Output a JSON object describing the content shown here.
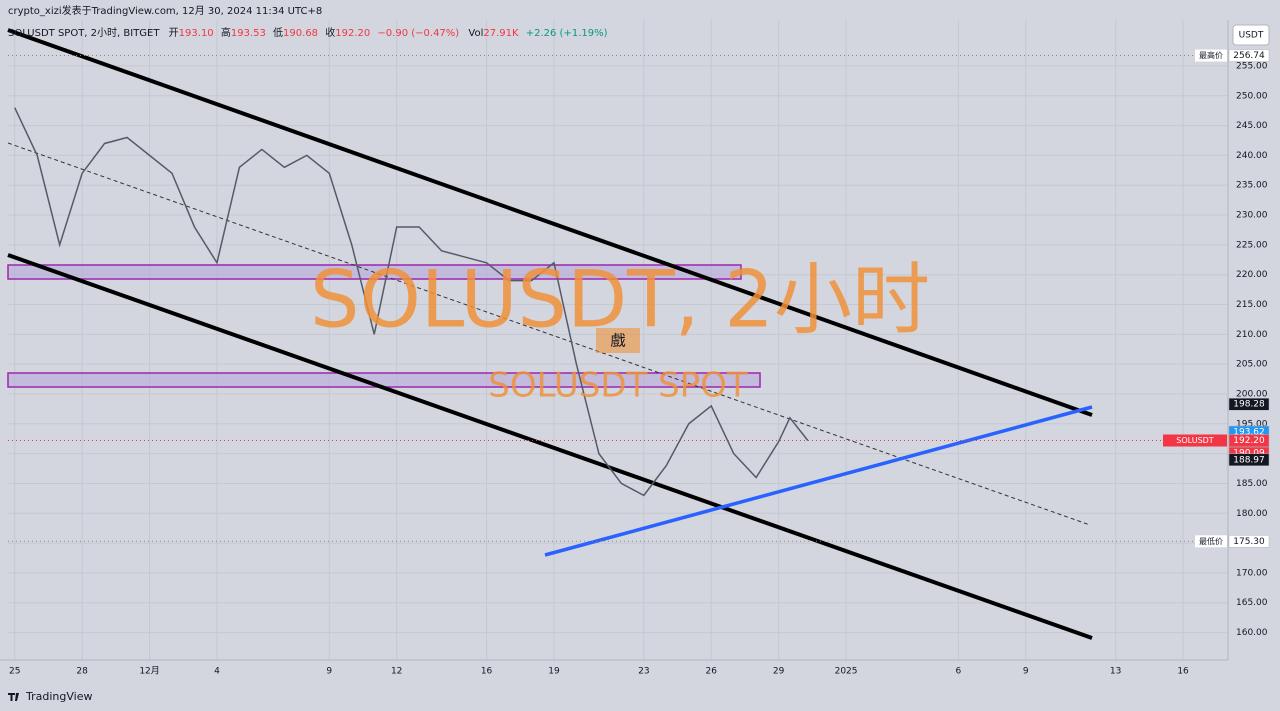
{
  "header": {
    "author_line": "crypto_xizi发表于TradingView.com, 12月 30, 2024 11:34 UTC+8",
    "symbol": "SOLUSDT SPOT, 2小时, BITGET",
    "ohlc": [
      {
        "label": "开",
        "value": "193.10"
      },
      {
        "label": "高",
        "value": "193.53"
      },
      {
        "label": "低",
        "value": "190.68"
      },
      {
        "label": "收",
        "value": "192.20"
      }
    ],
    "change": "−0.90 (−0.47%)",
    "vol_label": "Vol",
    "vol": "27.91K",
    "vol_change": "+2.26 (+1.19%)",
    "currency": "USDT",
    "brand": "TradingView"
  },
  "watermark": {
    "title": "SOLUSDT, 2小时",
    "subtitle": "SOLUSDT SPOT",
    "badge": "戲"
  },
  "chart_data": {
    "type": "line",
    "color": "#555b66",
    "x": [
      0,
      1,
      2,
      3,
      4,
      5,
      6,
      7,
      8,
      9,
      10,
      11,
      12,
      13,
      14,
      15,
      16,
      17,
      18,
      19,
      20,
      21,
      22,
      23,
      24,
      25,
      26,
      27,
      28,
      29,
      30,
      31,
      32,
      33,
      34,
      34.5,
      35.3
    ],
    "values": [
      248,
      240,
      225,
      237,
      242,
      243,
      240,
      237,
      228,
      222,
      238,
      241,
      238,
      240,
      237,
      225,
      210,
      228,
      228,
      224,
      223,
      222,
      219,
      219,
      222,
      205,
      190,
      185,
      183,
      188,
      195,
      198,
      190,
      186,
      192,
      196,
      192.2
    ],
    "xlim": [
      -0.3,
      54
    ],
    "xticks": [
      {
        "value": 0,
        "label": "25"
      },
      {
        "value": 3,
        "label": "28"
      },
      {
        "value": 6,
        "label": "12月"
      },
      {
        "value": 9,
        "label": "4"
      },
      {
        "value": 14,
        "label": "9"
      },
      {
        "value": 17,
        "label": "12"
      },
      {
        "value": 21,
        "label": "16"
      },
      {
        "value": 24,
        "label": "19"
      },
      {
        "value": 28,
        "label": "23"
      },
      {
        "value": 31,
        "label": "26"
      },
      {
        "value": 34,
        "label": "29"
      },
      {
        "value": 37,
        "label": "2025"
      },
      {
        "value": 42,
        "label": "6"
      },
      {
        "value": 45,
        "label": "9"
      },
      {
        "value": 49,
        "label": "13"
      },
      {
        "value": 52,
        "label": "16"
      }
    ],
    "ylim": [
      155.4,
      262.7
    ],
    "yticks": [
      {
        "value": 160,
        "label": "160.00"
      },
      {
        "value": 165,
        "label": "165.00"
      },
      {
        "value": 170,
        "label": "170.00"
      },
      {
        "value": 175,
        "label": "175.00"
      },
      {
        "value": 180,
        "label": "180.00"
      },
      {
        "value": 185,
        "label": "185.00"
      },
      {
        "value": 190,
        "label": "190.00"
      },
      {
        "value": 195,
        "label": "195.00"
      },
      {
        "value": 200,
        "label": "200.00"
      },
      {
        "value": 205,
        "label": "205.00"
      },
      {
        "value": 210,
        "label": "210.00"
      },
      {
        "value": 215,
        "label": "215.00"
      },
      {
        "value": 220,
        "label": "220.00"
      },
      {
        "value": 225,
        "label": "225.00"
      },
      {
        "value": 230,
        "label": "230.00"
      },
      {
        "value": 235,
        "label": "235.00"
      },
      {
        "value": 240,
        "label": "240.00"
      },
      {
        "value": 245,
        "label": "245.00"
      },
      {
        "value": 250,
        "label": "250.00"
      },
      {
        "value": 255,
        "label": "255.00"
      }
    ],
    "grid": true,
    "price_tags": [
      {
        "value": 256.74,
        "label": "256.74",
        "name": "最高价",
        "color": "#ffffff",
        "text_color": "#131722"
      },
      {
        "value": 198.28,
        "label": "198.28",
        "color": "#131722",
        "text_color": "#ffffff"
      },
      {
        "value": 193.62,
        "label": "193.62",
        "color": "#2196f3",
        "text_color": "#ffffff"
      },
      {
        "value": 192.2,
        "label": "192.20",
        "name": "SOLUSDT",
        "color": "#f23645",
        "text_color": "#ffffff"
      },
      {
        "value": 190.09,
        "label": "190.09",
        "color": "#f23645",
        "text_color": "#ffffff"
      },
      {
        "value": 188.97,
        "label": "188.97",
        "color": "#131722",
        "text_color": "#ffffff"
      },
      {
        "value": 175.3,
        "label": "175.30",
        "name": "最低价",
        "color": "#ffffff",
        "text_color": "#131722"
      }
    ],
    "countdown": "25:50"
  }
}
